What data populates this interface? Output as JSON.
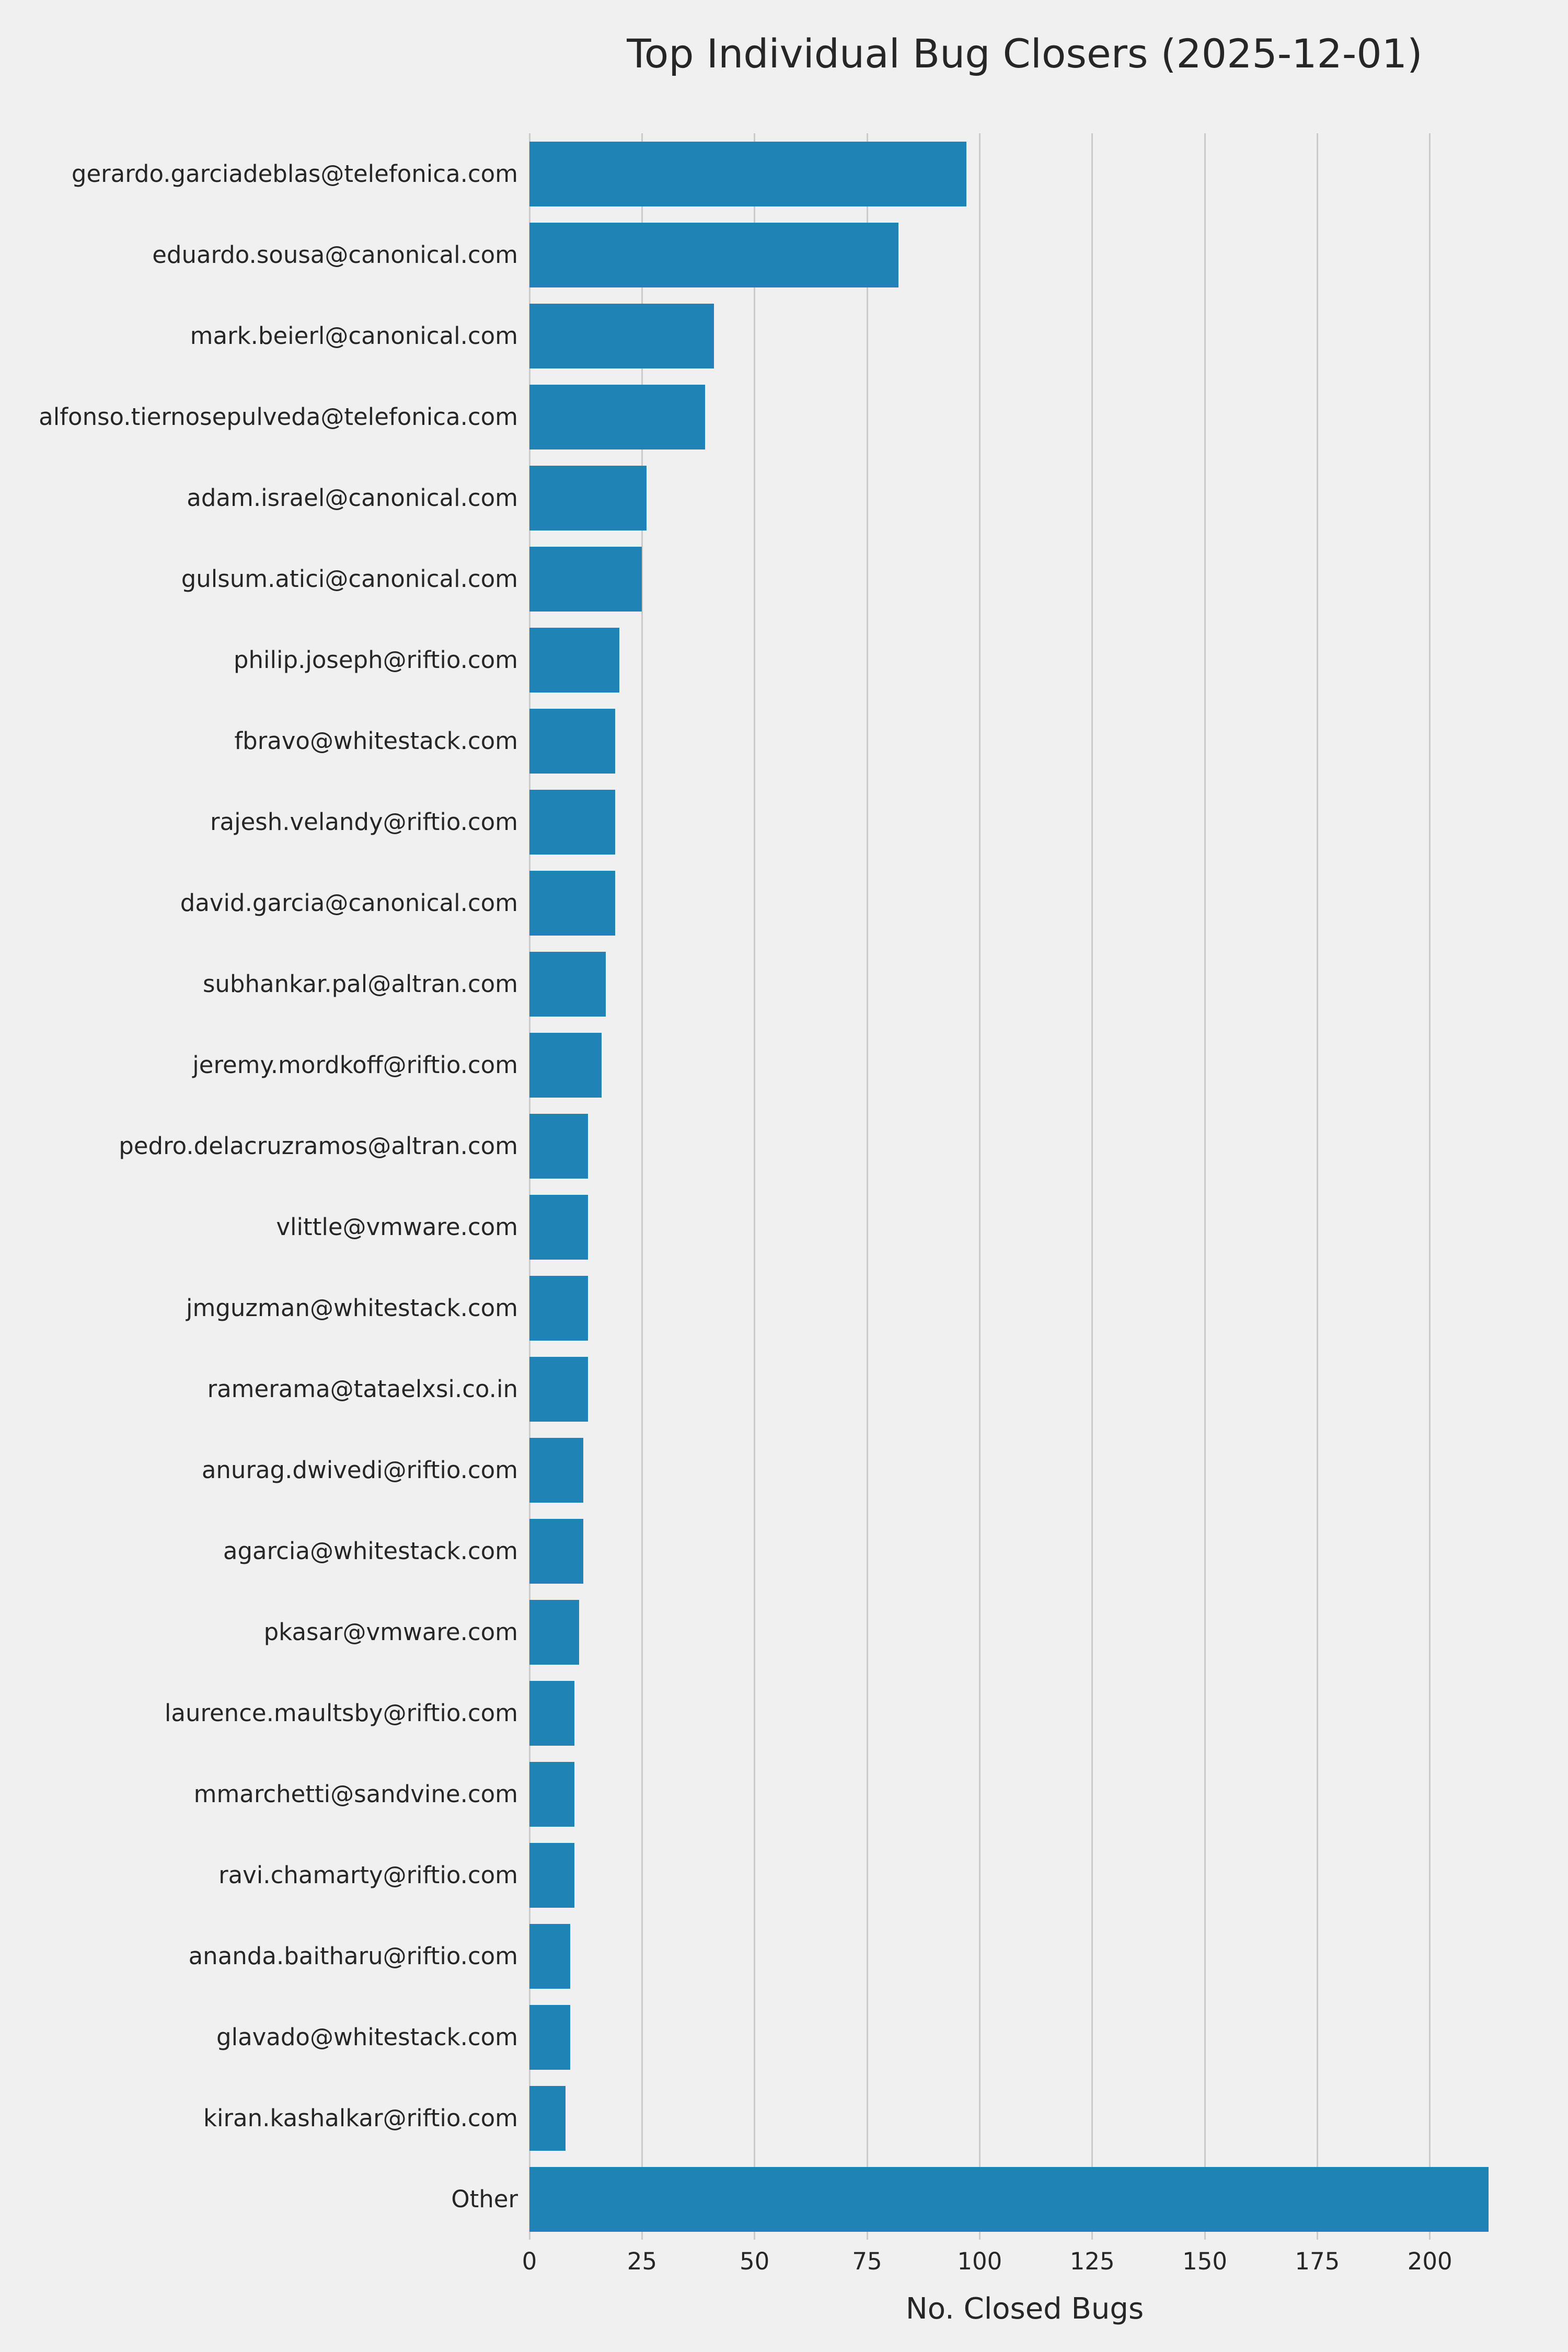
{
  "colors": {
    "background": "#f0f0f0",
    "bar": "#2083b5",
    "grid": "#cbcbcb",
    "text": "#262626"
  },
  "chart_data": {
    "type": "bar",
    "orientation": "horizontal",
    "title": "Top Individual Bug Closers (2025-12-01)",
    "xlabel": "No. Closed Bugs",
    "ylabel": "",
    "xlim": [
      0,
      220
    ],
    "xticks": [
      0,
      25,
      50,
      75,
      100,
      125,
      150,
      175,
      200
    ],
    "grid": true,
    "legend": false,
    "categories": [
      "gerardo.garciadeblas@telefonica.com",
      "eduardo.sousa@canonical.com",
      "mark.beierl@canonical.com",
      "alfonso.tiernosepulveda@telefonica.com",
      "adam.israel@canonical.com",
      "gulsum.atici@canonical.com",
      "philip.joseph@riftio.com",
      "fbravo@whitestack.com",
      "rajesh.velandy@riftio.com",
      "david.garcia@canonical.com",
      "subhankar.pal@altran.com",
      "jeremy.mordkoff@riftio.com",
      "pedro.delacruzramos@altran.com",
      "vlittle@vmware.com",
      "jmguzman@whitestack.com",
      "ramerama@tataelxsi.co.in",
      "anurag.dwivedi@riftio.com",
      "agarcia@whitestack.com",
      "pkasar@vmware.com",
      "laurence.maultsby@riftio.com",
      "mmarchetti@sandvine.com",
      "ravi.chamarty@riftio.com",
      "ananda.baitharu@riftio.com",
      "glavado@whitestack.com",
      "kiran.kashalkar@riftio.com",
      "Other"
    ],
    "values": [
      97,
      82,
      41,
      39,
      26,
      25,
      20,
      19,
      19,
      19,
      17,
      16,
      13,
      13,
      13,
      13,
      12,
      12,
      11,
      10,
      10,
      10,
      9,
      9,
      8,
      213
    ]
  }
}
